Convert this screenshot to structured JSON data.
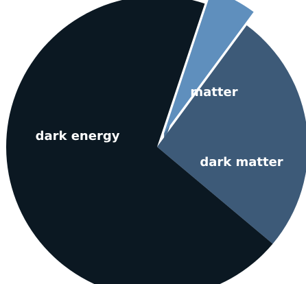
{
  "chart_data": {
    "type": "pie",
    "categories": [
      "dark energy",
      "dark matter",
      "matter"
    ],
    "values": [
      69,
      26,
      5
    ],
    "colors": [
      "#0b1822",
      "#3d5a78",
      "#5f8fbd"
    ],
    "legend": "none",
    "notes": "3D-style pie with the matter slice exploded outward"
  }
}
